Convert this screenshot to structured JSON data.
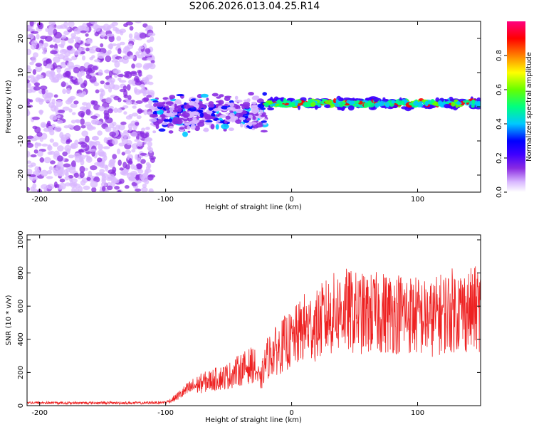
{
  "title": "S206.2026.013.04.25.R14",
  "chart_data": [
    {
      "type": "heatmap",
      "xlabel": "Height of straight line (km)",
      "ylabel": "Frequency (Hz)",
      "xlim": [
        -210,
        150
      ],
      "ylim": [
        -25,
        25
      ],
      "xticks": [
        -200,
        -100,
        0,
        100
      ],
      "xtick_labels": [
        "-200",
        "-100",
        "0",
        "100"
      ],
      "yticks": [
        -20,
        -10,
        0,
        10,
        20
      ],
      "ytick_labels": [
        "-20",
        "-10",
        "0",
        "10",
        "20"
      ],
      "colorbar": {
        "label": "Normalized spectral amplitude",
        "range": [
          0,
          1
        ],
        "ticks": [
          0,
          0.2,
          0.4,
          0.6,
          0.8
        ],
        "tick_labels": [
          "0.0",
          "0.2",
          "0.4",
          "0.6",
          "0.8"
        ],
        "colors": [
          "#ffffff",
          "#d9b8ff",
          "#8a2be2",
          "#3f00ff",
          "#0000ff",
          "#00c8ff",
          "#00ff80",
          "#66ff00",
          "#ffff00",
          "#ff8000",
          "#ff0000",
          "#ff0080"
        ]
      },
      "segments": [
        {
          "x_from": -210,
          "x_to": -110,
          "frequency_center": 0,
          "frequency_spread": 25,
          "amplitude": 0.15,
          "description_level": "noise"
        },
        {
          "x_from": -110,
          "x_to": -20,
          "frequency_center": -2,
          "frequency_spread": 6,
          "amplitude": 0.3
        },
        {
          "x_from": -20,
          "x_to": 150,
          "frequency_center": 1,
          "frequency_spread": 1.5,
          "amplitude": 0.55
        }
      ]
    },
    {
      "type": "line",
      "xlabel": "Height of straight line (km)",
      "ylabel": "SNR (10 * v/v)",
      "xlim": [
        -210,
        150
      ],
      "ylim": [
        0,
        1030
      ],
      "xticks": [
        -200,
        -100,
        0,
        100
      ],
      "xtick_labels": [
        "-200",
        "-100",
        "0",
        "100"
      ],
      "yticks": [
        0,
        200,
        400,
        600,
        800,
        1000
      ],
      "ytick_labels": [
        "0",
        "200",
        "400",
        "600",
        "800",
        "1000"
      ],
      "line_color": "#ee2222",
      "series": [
        {
          "name": "SNR",
          "x": [
            -210,
            -180,
            -150,
            -120,
            -100,
            -95,
            -90,
            -80,
            -70,
            -60,
            -50,
            -40,
            -30,
            -25,
            -20,
            -15,
            -10,
            -5,
            0,
            10,
            20,
            25,
            30,
            40,
            50,
            60,
            70,
            80,
            90,
            100,
            110,
            120,
            130,
            140,
            150
          ],
          "y": [
            18,
            16,
            17,
            16,
            20,
            35,
            60,
            110,
            140,
            160,
            180,
            220,
            250,
            140,
            280,
            320,
            340,
            380,
            390,
            470,
            480,
            520,
            540,
            580,
            560,
            550,
            560,
            560,
            560,
            540,
            520,
            560,
            580,
            570,
            590
          ]
        }
      ],
      "noise_amplitude_fraction": 0.45
    }
  ]
}
